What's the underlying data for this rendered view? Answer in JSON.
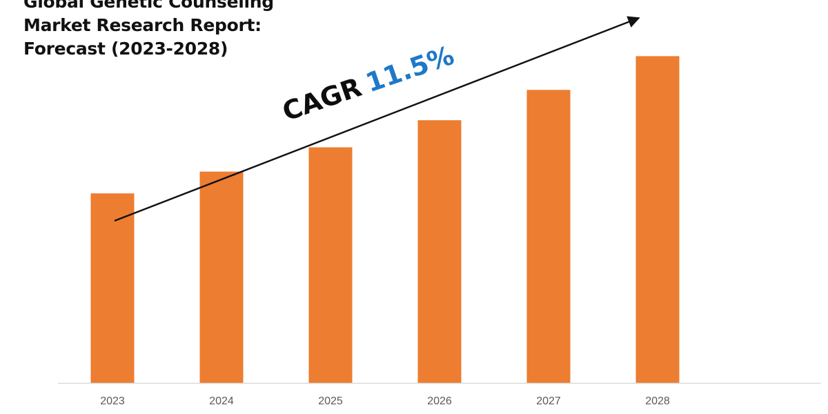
{
  "chart_data": {
    "type": "bar",
    "title_lines": [
      "Global Genetic Counseling",
      "Market Research Report:",
      "Forecast (2023-2028)"
    ],
    "categories": [
      "2023",
      "2024",
      "2025",
      "2026",
      "2027",
      "2028"
    ],
    "values": [
      100,
      111.5,
      124.3,
      138.6,
      154.6,
      172.4
    ],
    "ylim": [
      0,
      182
    ],
    "grid": false,
    "legend": "none",
    "annotation": {
      "prefix": "CAGR",
      "value": "11.5%",
      "arrow": "rising, from above 2023 to above 2028"
    }
  },
  "colors": {
    "bar": "#ed7d31",
    "axis": "#d9d9d9",
    "title": "#111111",
    "cagr_text": "#0d0d0d",
    "cagr_value": "#1f78c8",
    "arrow": "#111111",
    "tick_label": "#595959"
  }
}
